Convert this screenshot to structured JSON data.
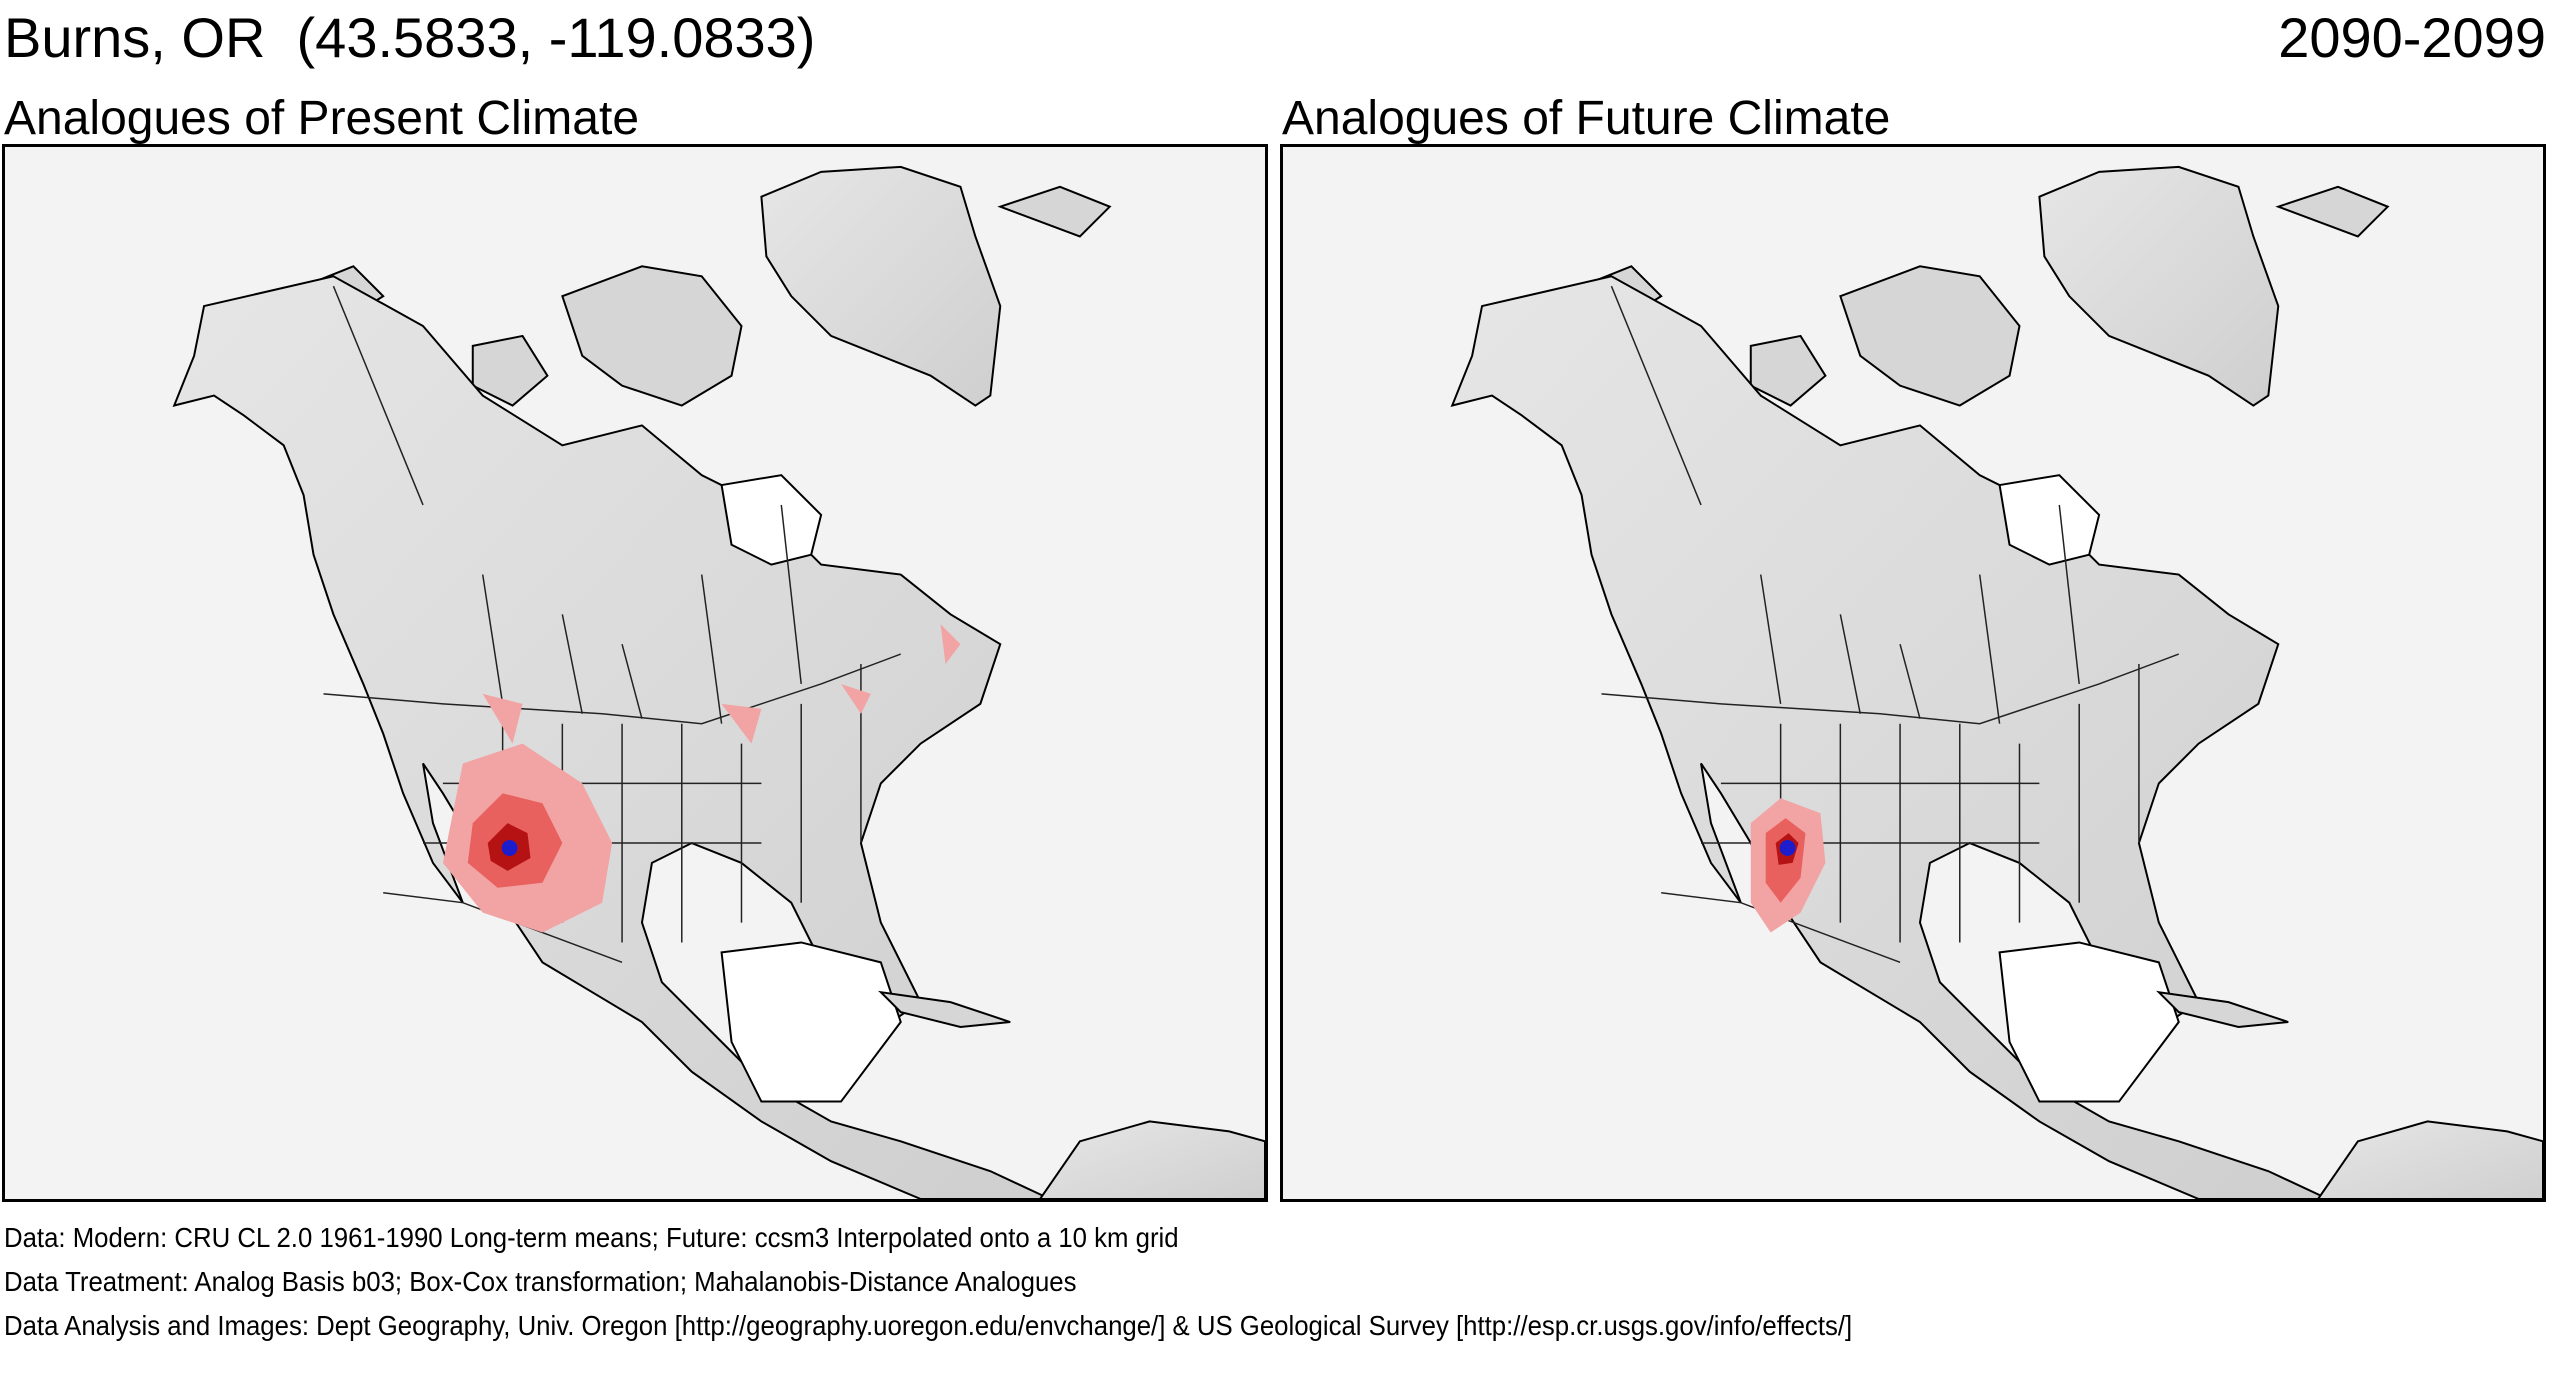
{
  "header": {
    "location": "Burns, OR  (43.5833, -119.0833)",
    "period": "2090-2099"
  },
  "panels": [
    {
      "title": "Analogues of Present Climate"
    },
    {
      "title": "Analogues of Future Climate"
    }
  ],
  "footer": {
    "line1": "Data:  Modern: CRU CL 2.0 1961-1990 Long-term means; Future: ccsm3 Interpolated onto a 10 km grid",
    "line2": "Data Treatment:  Analog Basis b03; Box-Cox transformation; Mahalanobis-Distance Analogues",
    "line3": "Data Analysis and Images:  Dept Geography, Univ. Oregon [http://geography.uoregon.edu/envchange/] & US Geological Survey [http://esp.cr.usgs.gov/info/effects/]"
  },
  "colors": {
    "land": "#d9d9d9",
    "ocean": "#f3f3f3",
    "analog_light": "#f2a3a3",
    "analog_mid": "#e8615f",
    "analog_dark": "#b51313",
    "site_marker": "#1d1dcc"
  }
}
